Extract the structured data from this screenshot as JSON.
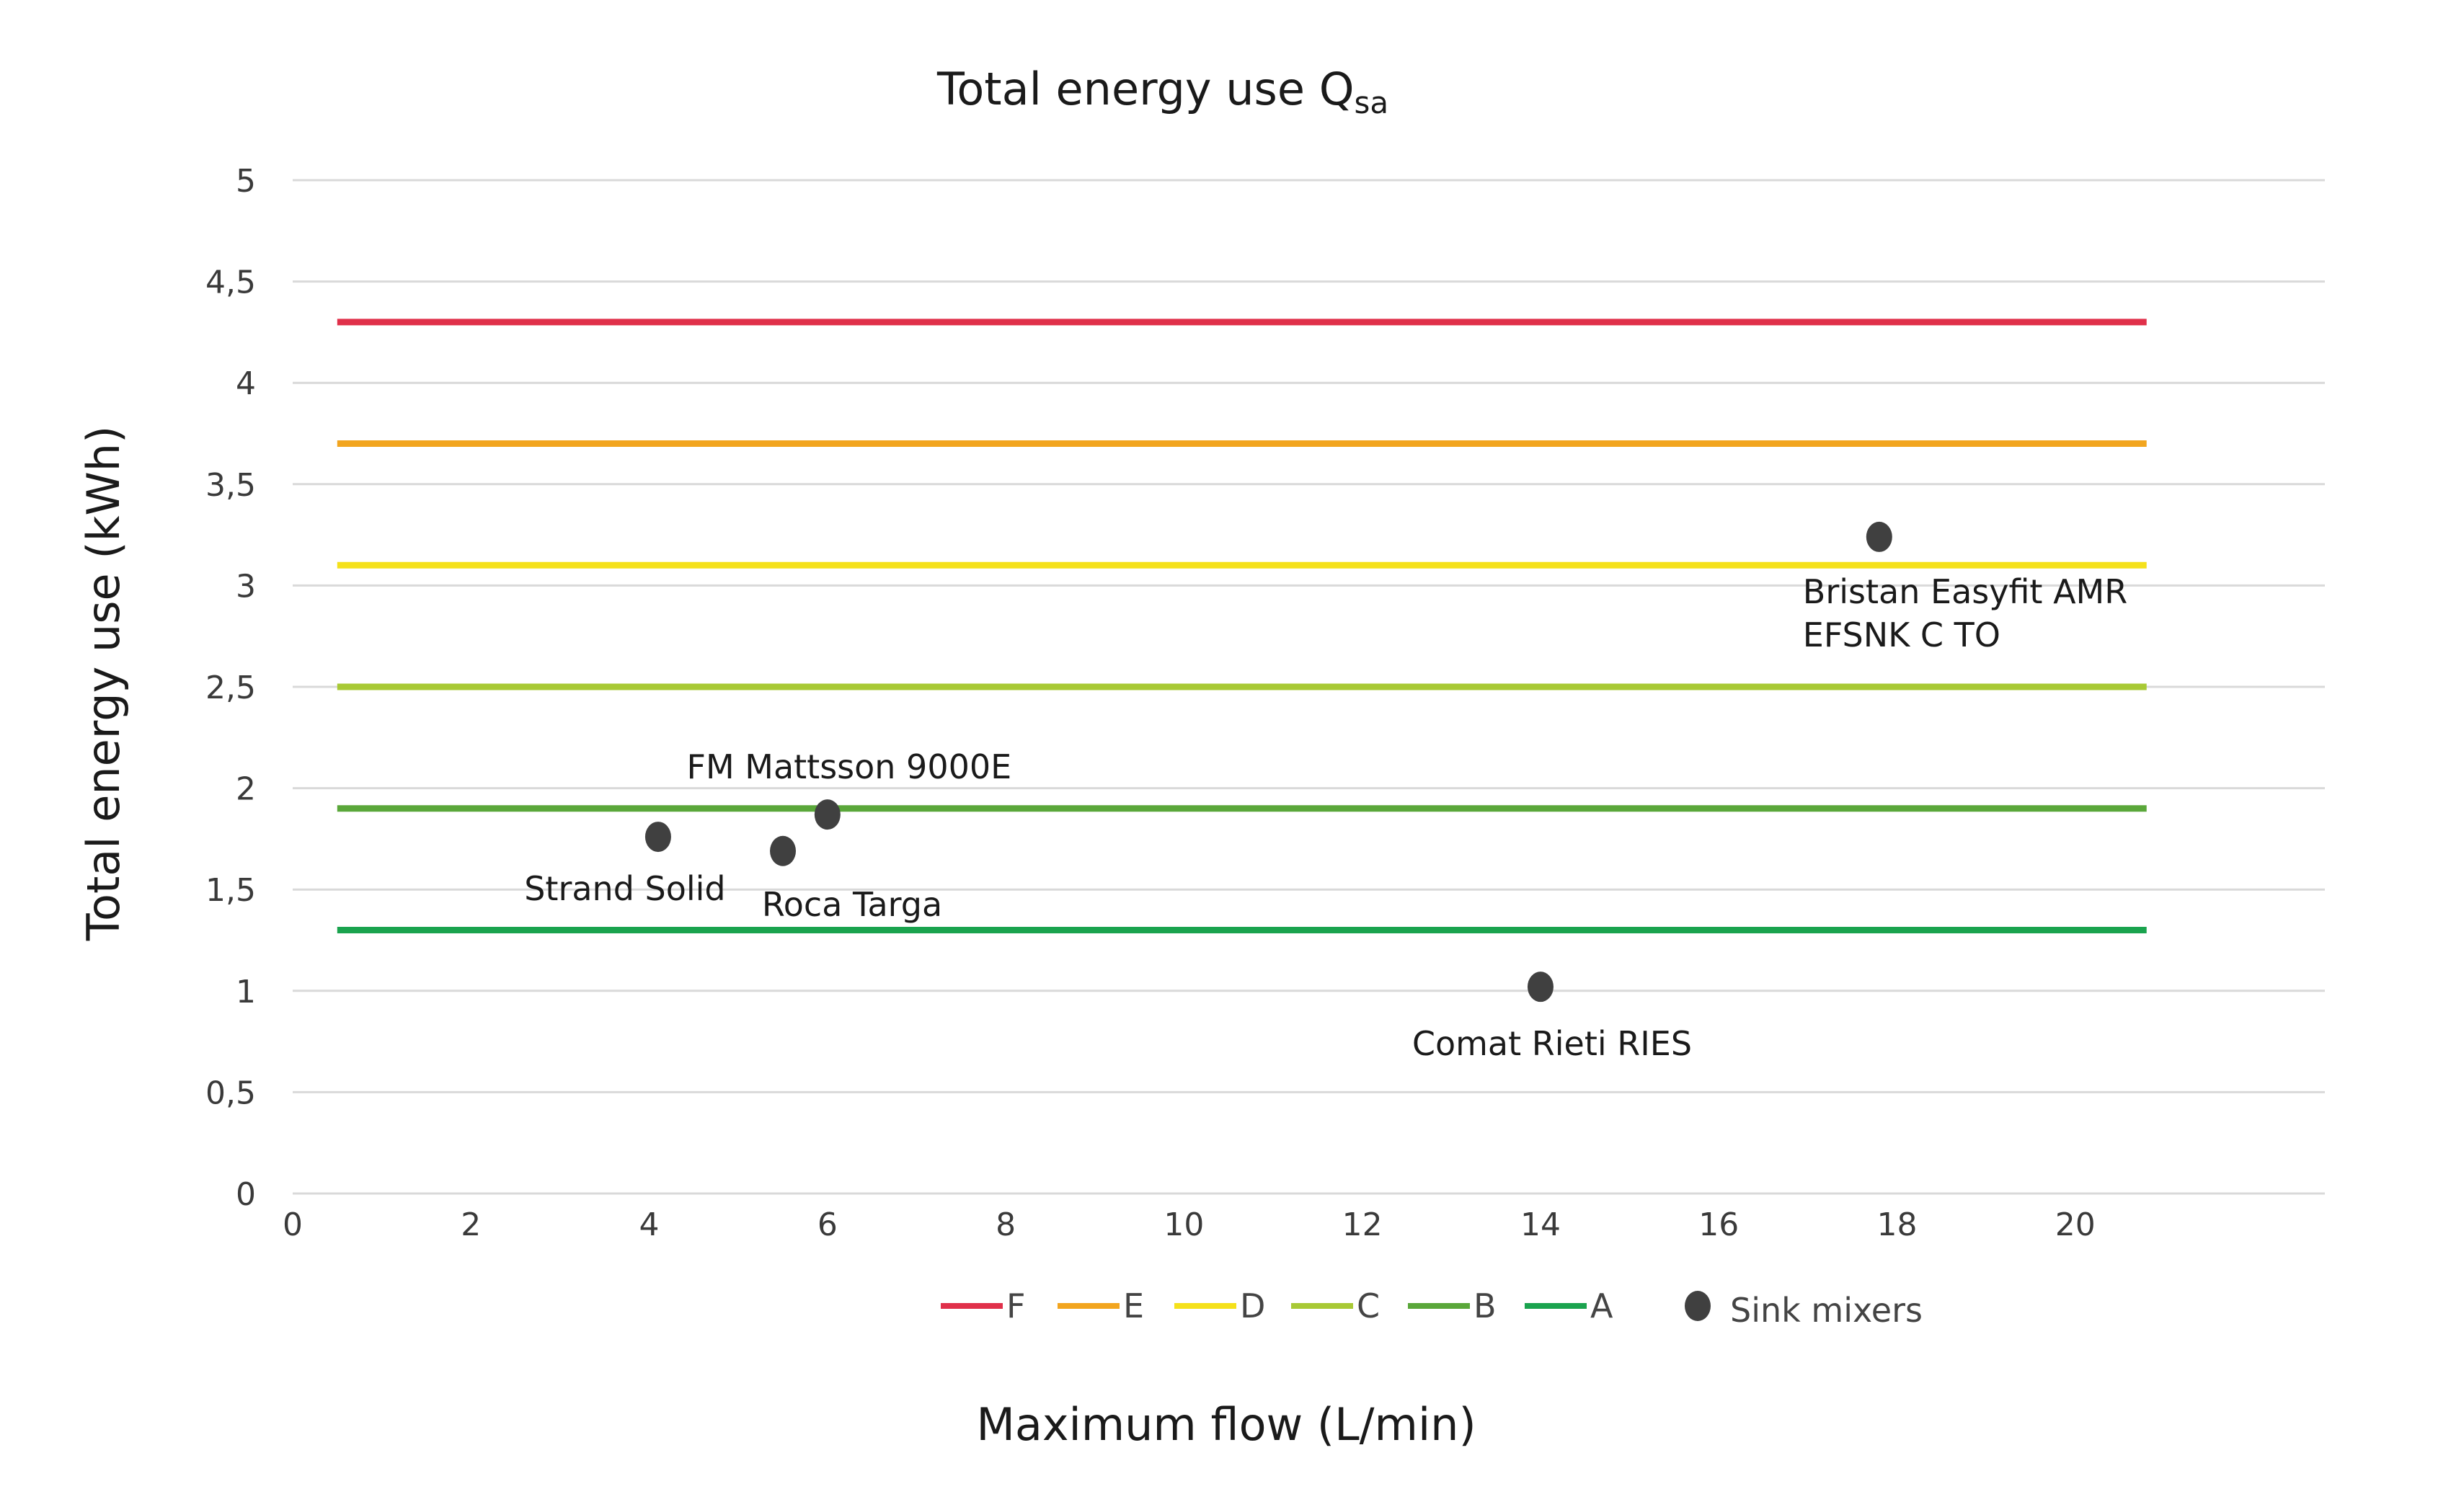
{
  "chart_data": {
    "type": "scatter",
    "title": "Total energy use Q",
    "title_subscript": "sa",
    "xlabel": "Maximum flow (L/min)",
    "ylabel": "Total energy use (kWh)",
    "xlim": [
      0,
      22.8
    ],
    "ylim": [
      0,
      5
    ],
    "x_ticks": [
      0,
      2,
      4,
      6,
      8,
      10,
      12,
      14,
      16,
      18,
      20
    ],
    "x_tick_labels": [
      "0",
      "2",
      "4",
      "6",
      "8",
      "10",
      "12",
      "14",
      "16",
      "18",
      "20"
    ],
    "y_ticks": [
      0,
      0.5,
      1,
      1.5,
      2,
      2.5,
      3,
      3.5,
      4,
      4.5,
      5
    ],
    "y_tick_labels": [
      "0",
      "0,5",
      "1",
      "1,5",
      "2",
      "2,5",
      "3",
      "3,5",
      "4",
      "4,5",
      "5"
    ],
    "grid": "horizontal",
    "legend_position": "bottom",
    "thresholds": [
      {
        "name": "F",
        "value": 4.3,
        "x_range": [
          0.5,
          20.8
        ],
        "color": "#e0304a"
      },
      {
        "name": "E",
        "value": 3.7,
        "x_range": [
          0.5,
          20.8
        ],
        "color": "#f2a51f"
      },
      {
        "name": "D",
        "value": 3.1,
        "x_range": [
          0.5,
          20.8
        ],
        "color": "#f5e11b"
      },
      {
        "name": "C",
        "value": 2.5,
        "x_range": [
          0.5,
          20.8
        ],
        "color": "#a8c935"
      },
      {
        "name": "B",
        "value": 1.9,
        "x_range": [
          0.5,
          20.8
        ],
        "color": "#5aa73a"
      },
      {
        "name": "A",
        "value": 1.3,
        "x_range": [
          0.5,
          20.8
        ],
        "color": "#1aa34e"
      }
    ],
    "series": [
      {
        "name": "Sink mixers",
        "color": "#404040",
        "points": [
          {
            "x": 4.1,
            "y": 1.76,
            "label": [
              "Strand Solid"
            ]
          },
          {
            "x": 5.5,
            "y": 1.69,
            "label": [
              "Roca Targa"
            ]
          },
          {
            "x": 6.0,
            "y": 1.87,
            "label": [
              "FM Mattsson 9000E"
            ]
          },
          {
            "x": 14.0,
            "y": 1.02,
            "label": [
              "Comat Rieti RIES"
            ]
          },
          {
            "x": 17.8,
            "y": 3.24,
            "label": [
              "Bristan Easyfit AMR",
              "EFSNK C TO"
            ]
          }
        ]
      }
    ]
  }
}
